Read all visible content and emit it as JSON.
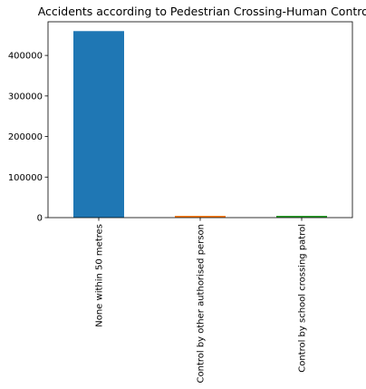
{
  "chart_data": {
    "type": "bar",
    "title": "Accidents according to Pedestrian Crossing-Human Control",
    "xlabel": "",
    "ylabel": "",
    "categories": [
      "None within 50 metres",
      "Control by other authorised person",
      "Control by school crossing patrol"
    ],
    "values": [
      460000,
      1500,
      1500
    ],
    "ylim": [
      0,
      483000
    ],
    "yticks": [
      0,
      100000,
      200000,
      300000,
      400000
    ],
    "ytick_labels": [
      "0",
      "100000",
      "200000",
      "300000",
      "400000"
    ],
    "grid": false,
    "legend": "none",
    "colors": [
      "#1f77b4",
      "#ff7f0e",
      "#2ca02c"
    ]
  }
}
